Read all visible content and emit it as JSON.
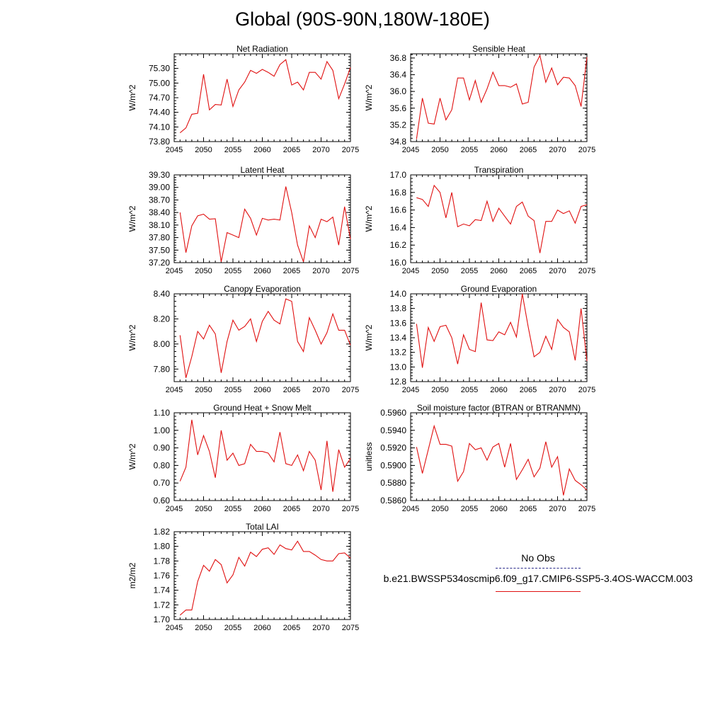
{
  "page_title": "Global (90S-90N,180W-180E)",
  "legend": {
    "obs_label": "No Obs",
    "model_label": "b.e21.BWSSP534oscmip6.f09_g17.CMIP6-SSP5-3.4OS-WACCM.003",
    "obs_color": "#2a2a8a",
    "model_color": "#e01010"
  },
  "chart_data": [
    {
      "type": "line",
      "title": "Net Radiation",
      "ylabel": "W/m^2",
      "xlim": [
        2045,
        2075
      ],
      "ylim": [
        73.8,
        75.6
      ],
      "yticks": [
        "73.80",
        "74.10",
        "74.40",
        "74.70",
        "75.00",
        "75.30"
      ],
      "xticks": [
        "2045",
        "2050",
        "2055",
        "2060",
        "2065",
        "2070",
        "2075"
      ],
      "x": [
        2046,
        2047,
        2048,
        2049,
        2050,
        2051,
        2052,
        2053,
        2054,
        2055,
        2056,
        2057,
        2058,
        2059,
        2060,
        2061,
        2062,
        2063,
        2064,
        2065,
        2066,
        2067,
        2068,
        2069,
        2070,
        2071,
        2072,
        2073,
        2074,
        2075
      ],
      "series": [
        {
          "color": "#e01010",
          "values": [
            73.98,
            74.08,
            74.36,
            74.38,
            75.18,
            74.45,
            74.56,
            74.55,
            75.08,
            74.52,
            74.86,
            75.02,
            75.26,
            75.2,
            75.28,
            75.22,
            75.14,
            75.38,
            75.48,
            74.96,
            75.02,
            74.86,
            75.22,
            75.22,
            75.08,
            75.44,
            75.26,
            74.68,
            74.98,
            75.32
          ]
        }
      ]
    },
    {
      "type": "line",
      "title": "Sensible Heat",
      "ylabel": "W/m^2",
      "xlim": [
        2045,
        2075
      ],
      "ylim": [
        34.8,
        36.9
      ],
      "yticks": [
        "34.8",
        "35.2",
        "35.6",
        "36.0",
        "36.4",
        "36.8"
      ],
      "xticks": [
        "2045",
        "2050",
        "2055",
        "2060",
        "2065",
        "2070",
        "2075"
      ],
      "x": [
        2046,
        2047,
        2048,
        2049,
        2050,
        2051,
        2052,
        2053,
        2054,
        2055,
        2056,
        2057,
        2058,
        2059,
        2060,
        2061,
        2062,
        2063,
        2064,
        2065,
        2066,
        2067,
        2068,
        2069,
        2070,
        2071,
        2072,
        2073,
        2074,
        2075
      ],
      "series": [
        {
          "color": "#e01010",
          "values": [
            34.86,
            35.84,
            35.24,
            35.22,
            35.84,
            35.32,
            35.56,
            36.32,
            36.32,
            35.8,
            36.26,
            35.74,
            36.06,
            36.46,
            36.14,
            36.14,
            36.1,
            36.18,
            35.7,
            35.74,
            36.58,
            36.86,
            36.22,
            36.56,
            36.16,
            36.34,
            36.32,
            36.14,
            35.64,
            36.82
          ]
        }
      ]
    },
    {
      "type": "line",
      "title": "Latent Heat",
      "ylabel": "W/m^2",
      "xlim": [
        2045,
        2075
      ],
      "ylim": [
        37.2,
        39.3
      ],
      "yticks": [
        "37.20",
        "37.50",
        "37.80",
        "38.10",
        "38.40",
        "38.70",
        "39.00",
        "39.30"
      ],
      "xticks": [
        "2045",
        "2050",
        "2055",
        "2060",
        "2065",
        "2070",
        "2075"
      ],
      "x": [
        2046,
        2047,
        2048,
        2049,
        2050,
        2051,
        2052,
        2053,
        2054,
        2055,
        2056,
        2057,
        2058,
        2059,
        2060,
        2061,
        2062,
        2063,
        2064,
        2065,
        2066,
        2067,
        2068,
        2069,
        2070,
        2071,
        2072,
        2073,
        2074,
        2075
      ],
      "series": [
        {
          "color": "#e01010",
          "values": [
            38.4,
            37.44,
            38.08,
            38.32,
            38.36,
            38.24,
            38.25,
            37.22,
            37.92,
            37.86,
            37.8,
            38.48,
            38.26,
            37.86,
            38.26,
            38.22,
            38.24,
            38.22,
            39.02,
            38.4,
            37.62,
            37.22,
            38.08,
            37.8,
            38.24,
            38.18,
            38.29,
            37.62,
            38.54,
            37.76
          ]
        }
      ]
    },
    {
      "type": "line",
      "title": "Transpiration",
      "ylabel": "W/m^2",
      "xlim": [
        2045,
        2075
      ],
      "ylim": [
        16.0,
        17.0
      ],
      "yticks": [
        "16.0",
        "16.2",
        "16.4",
        "16.6",
        "16.8",
        "17.0"
      ],
      "xticks": [
        "2045",
        "2050",
        "2055",
        "2060",
        "2065",
        "2070",
        "2075"
      ],
      "x": [
        2046,
        2047,
        2048,
        2049,
        2050,
        2051,
        2052,
        2053,
        2054,
        2055,
        2056,
        2057,
        2058,
        2059,
        2060,
        2061,
        2062,
        2063,
        2064,
        2065,
        2066,
        2067,
        2068,
        2069,
        2070,
        2071,
        2072,
        2073,
        2074,
        2075
      ],
      "series": [
        {
          "color": "#e01010",
          "values": [
            16.74,
            16.72,
            16.64,
            16.88,
            16.8,
            16.51,
            16.8,
            16.41,
            16.44,
            16.42,
            16.49,
            16.48,
            16.7,
            16.47,
            16.62,
            16.53,
            16.44,
            16.64,
            16.69,
            16.53,
            16.48,
            16.11,
            16.47,
            16.47,
            16.6,
            16.56,
            16.59,
            16.45,
            16.64,
            16.66
          ]
        }
      ]
    },
    {
      "type": "line",
      "title": "Canopy Evaporation",
      "ylabel": "W/m^2",
      "xlim": [
        2045,
        2075
      ],
      "ylim": [
        7.7,
        8.4
      ],
      "yticks": [
        "7.80",
        "8.00",
        "8.20",
        "8.40"
      ],
      "xticks": [
        "2045",
        "2050",
        "2055",
        "2060",
        "2065",
        "2070",
        "2075"
      ],
      "x": [
        2046,
        2047,
        2048,
        2049,
        2050,
        2051,
        2052,
        2053,
        2054,
        2055,
        2056,
        2057,
        2058,
        2059,
        2060,
        2061,
        2062,
        2063,
        2064,
        2065,
        2066,
        2067,
        2068,
        2069,
        2070,
        2071,
        2072,
        2073,
        2074,
        2075
      ],
      "series": [
        {
          "color": "#e01010",
          "values": [
            8.07,
            7.73,
            7.9,
            8.1,
            8.04,
            8.15,
            8.08,
            7.77,
            8.02,
            8.19,
            8.11,
            8.14,
            8.2,
            8.02,
            8.18,
            8.26,
            8.19,
            8.16,
            8.36,
            8.34,
            8.02,
            7.94,
            8.21,
            8.11,
            8.0,
            8.09,
            8.24,
            8.11,
            8.11,
            7.99
          ]
        }
      ]
    },
    {
      "type": "line",
      "title": "Ground Evaporation",
      "ylabel": "W/m^2",
      "xlim": [
        2045,
        2075
      ],
      "ylim": [
        12.8,
        14.0
      ],
      "yticks": [
        "12.8",
        "13.0",
        "13.2",
        "13.4",
        "13.6",
        "13.8",
        "14.0"
      ],
      "xticks": [
        "2045",
        "2050",
        "2055",
        "2060",
        "2065",
        "2070",
        "2075"
      ],
      "x": [
        2046,
        2047,
        2048,
        2049,
        2050,
        2051,
        2052,
        2053,
        2054,
        2055,
        2056,
        2057,
        2058,
        2059,
        2060,
        2061,
        2062,
        2063,
        2064,
        2065,
        2066,
        2067,
        2068,
        2069,
        2070,
        2071,
        2072,
        2073,
        2074,
        2075
      ],
      "series": [
        {
          "color": "#e01010",
          "values": [
            13.59,
            12.99,
            13.54,
            13.35,
            13.55,
            13.57,
            13.4,
            13.04,
            13.44,
            13.24,
            13.21,
            13.88,
            13.37,
            13.36,
            13.48,
            13.44,
            13.61,
            13.41,
            14.0,
            13.55,
            13.14,
            13.2,
            13.42,
            13.24,
            13.65,
            13.54,
            13.48,
            13.09,
            13.8,
            13.08
          ]
        }
      ]
    },
    {
      "type": "line",
      "title": "Ground Heat + Snow Melt",
      "ylabel": "W/m^2",
      "xlim": [
        2045,
        2075
      ],
      "ylim": [
        0.6,
        1.1
      ],
      "yticks": [
        "0.60",
        "0.70",
        "0.80",
        "0.90",
        "1.00",
        "1.10"
      ],
      "xticks": [
        "2045",
        "2050",
        "2055",
        "2060",
        "2065",
        "2070",
        "2075"
      ],
      "x": [
        2046,
        2047,
        2048,
        2049,
        2050,
        2051,
        2052,
        2053,
        2054,
        2055,
        2056,
        2057,
        2058,
        2059,
        2060,
        2061,
        2062,
        2063,
        2064,
        2065,
        2066,
        2067,
        2068,
        2069,
        2070,
        2071,
        2072,
        2073,
        2074,
        2075
      ],
      "series": [
        {
          "color": "#e01010",
          "values": [
            0.71,
            0.79,
            1.06,
            0.86,
            0.97,
            0.88,
            0.73,
            1.0,
            0.83,
            0.87,
            0.8,
            0.81,
            0.92,
            0.88,
            0.88,
            0.87,
            0.82,
            0.99,
            0.81,
            0.8,
            0.86,
            0.77,
            0.88,
            0.83,
            0.66,
            0.94,
            0.65,
            0.89,
            0.79,
            0.84
          ]
        }
      ]
    },
    {
      "type": "line",
      "title": "Soil moisture factor (BTRAN or BTRANMN)",
      "ylabel": "unitless",
      "xlim": [
        2045,
        2075
      ],
      "ylim": [
        0.586,
        0.596
      ],
      "yticks": [
        "0.5860",
        "0.5880",
        "0.5900",
        "0.5920",
        "0.5940",
        "0.5960"
      ],
      "xticks": [
        "2045",
        "2050",
        "2055",
        "2060",
        "2065",
        "2070",
        "2075"
      ],
      "x": [
        2046,
        2047,
        2048,
        2049,
        2050,
        2051,
        2052,
        2053,
        2054,
        2055,
        2056,
        2057,
        2058,
        2059,
        2060,
        2061,
        2062,
        2063,
        2064,
        2065,
        2066,
        2067,
        2068,
        2069,
        2070,
        2071,
        2072,
        2073,
        2074,
        2075
      ],
      "series": [
        {
          "color": "#e01010",
          "values": [
            0.5921,
            0.5891,
            0.5918,
            0.5945,
            0.5924,
            0.5924,
            0.5922,
            0.5882,
            0.5893,
            0.5925,
            0.5918,
            0.592,
            0.5906,
            0.5921,
            0.5925,
            0.5898,
            0.5925,
            0.5884,
            0.5895,
            0.5907,
            0.5887,
            0.5897,
            0.5927,
            0.5898,
            0.591,
            0.5866,
            0.5896,
            0.5883,
            0.5878,
            0.5872
          ]
        }
      ]
    },
    {
      "type": "line",
      "title": "Total LAI",
      "ylabel": "m2/m2",
      "xlim": [
        2045,
        2075
      ],
      "ylim": [
        1.7,
        1.82
      ],
      "yticks": [
        "1.70",
        "1.72",
        "1.74",
        "1.76",
        "1.78",
        "1.80",
        "1.82"
      ],
      "xticks": [
        "2045",
        "2050",
        "2055",
        "2060",
        "2065",
        "2070",
        "2075"
      ],
      "x": [
        2046,
        2047,
        2048,
        2049,
        2050,
        2051,
        2052,
        2053,
        2054,
        2055,
        2056,
        2057,
        2058,
        2059,
        2060,
        2061,
        2062,
        2063,
        2064,
        2065,
        2066,
        2067,
        2068,
        2069,
        2070,
        2071,
        2072,
        2073,
        2074,
        2075
      ],
      "series": [
        {
          "color": "#e01010",
          "values": [
            1.706,
            1.713,
            1.713,
            1.752,
            1.774,
            1.766,
            1.782,
            1.775,
            1.75,
            1.761,
            1.785,
            1.773,
            1.792,
            1.786,
            1.796,
            1.798,
            1.789,
            1.802,
            1.797,
            1.795,
            1.807,
            1.793,
            1.793,
            1.788,
            1.782,
            1.78,
            1.78,
            1.79,
            1.791,
            1.784
          ]
        }
      ]
    }
  ]
}
